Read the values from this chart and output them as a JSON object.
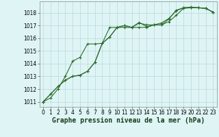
{
  "title": "Graphe pression niveau de la mer (hPa)",
  "bg": "#dff5f5",
  "grid_color": "#b8d8d8",
  "lc": "#2d6b2d",
  "xlim": [
    -0.5,
    23.5
  ],
  "ylim": [
    1010.6,
    1018.9
  ],
  "yticks": [
    1011,
    1012,
    1013,
    1014,
    1015,
    1016,
    1017,
    1018
  ],
  "xticks": [
    0,
    1,
    2,
    3,
    4,
    5,
    6,
    7,
    8,
    9,
    10,
    11,
    12,
    13,
    14,
    15,
    16,
    17,
    18,
    19,
    20,
    21,
    22,
    23
  ],
  "s1_x": [
    0,
    1,
    2,
    3,
    4,
    5,
    6,
    7,
    8,
    9,
    10,
    11,
    12,
    13,
    14,
    15,
    16,
    17,
    18,
    19,
    20,
    21,
    22,
    23
  ],
  "s1_y": [
    1011.0,
    1011.6,
    1012.2,
    1012.7,
    1013.0,
    1013.1,
    1013.4,
    1014.1,
    1015.6,
    1016.1,
    1016.85,
    1017.0,
    1016.85,
    1016.85,
    1016.85,
    1017.05,
    1017.05,
    1017.3,
    1017.8,
    1018.35,
    1018.4,
    1018.4,
    1018.35,
    1018.05
  ],
  "s2_x": [
    0,
    1,
    2,
    3,
    4,
    5,
    6,
    7,
    8,
    9,
    10,
    11,
    12,
    13,
    14,
    15,
    16,
    17,
    18,
    19,
    20,
    21,
    22,
    23
  ],
  "s2_y": [
    1011.0,
    1011.6,
    1012.2,
    1012.7,
    1013.0,
    1013.1,
    1013.4,
    1014.1,
    1015.6,
    1016.1,
    1016.85,
    1017.0,
    1016.85,
    1017.25,
    1016.9,
    1017.05,
    1017.2,
    1017.55,
    1018.15,
    1018.4,
    1018.45,
    1018.4,
    1018.35,
    1018.05
  ],
  "s3_x": [
    0,
    1,
    2,
    3,
    4,
    5,
    6,
    7,
    8,
    9,
    10,
    11,
    12,
    13,
    14,
    15,
    16,
    17,
    18,
    19,
    20,
    21,
    22,
    23
  ],
  "s3_y": [
    1011.0,
    1011.3,
    1012.0,
    1013.0,
    1014.2,
    1014.5,
    1015.55,
    1015.55,
    1015.6,
    1016.85,
    1016.85,
    1016.85,
    1016.85,
    1017.2,
    1017.05,
    1017.05,
    1017.05,
    1017.5,
    1018.2,
    1018.4,
    1018.4,
    1018.4,
    1018.35,
    1018.05
  ],
  "title_fs": 7,
  "tick_fs": 5.5,
  "lw": 0.8,
  "ms": 2.5,
  "mew": 0.8
}
